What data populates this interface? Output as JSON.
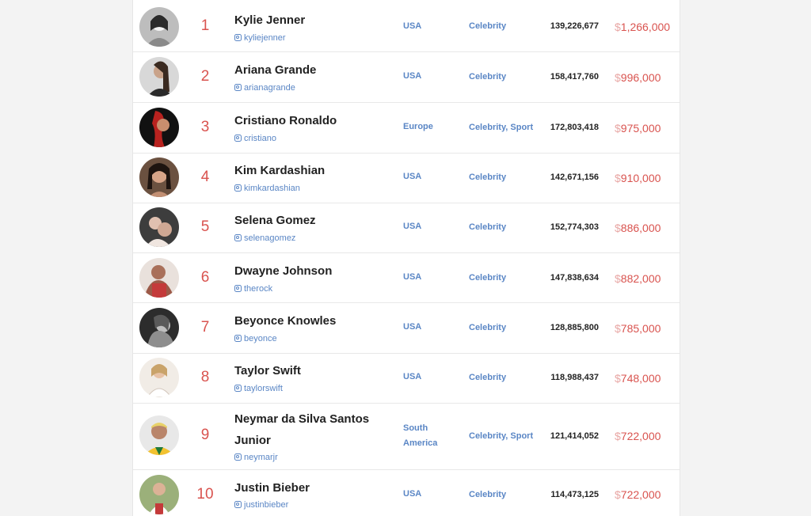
{
  "rows": [
    {
      "rank": "1",
      "name": "Kylie Jenner",
      "handle": "kyliejenner",
      "country": "USA",
      "category": [
        "Celebrity"
      ],
      "followers": "139,226,677",
      "currency": "$",
      "price": "1,266,000",
      "avatar": "avatar-portrait-icon"
    },
    {
      "rank": "2",
      "name": "Ariana Grande",
      "handle": "arianagrande",
      "country": "USA",
      "category": [
        "Celebrity"
      ],
      "followers": "158,417,760",
      "currency": "$",
      "price": "996,000",
      "avatar": "avatar-portrait-icon"
    },
    {
      "rank": "3",
      "name": "Cristiano Ronaldo",
      "handle": "cristiano",
      "country": "Europe",
      "category": [
        "Celebrity",
        "Sport"
      ],
      "followers": "172,803,418",
      "currency": "$",
      "price": "975,000",
      "avatar": "avatar-portrait-icon"
    },
    {
      "rank": "4",
      "name": "Kim Kardashian",
      "handle": "kimkardashian",
      "country": "USA",
      "category": [
        "Celebrity"
      ],
      "followers": "142,671,156",
      "currency": "$",
      "price": "910,000",
      "avatar": "avatar-portrait-icon"
    },
    {
      "rank": "5",
      "name": "Selena Gomez",
      "handle": "selenagomez",
      "country": "USA",
      "category": [
        "Celebrity"
      ],
      "followers": "152,774,303",
      "currency": "$",
      "price": "886,000",
      "avatar": "avatar-portrait-icon"
    },
    {
      "rank": "6",
      "name": "Dwayne Johnson",
      "handle": "therock",
      "country": "USA",
      "category": [
        "Celebrity"
      ],
      "followers": "147,838,634",
      "currency": "$",
      "price": "882,000",
      "avatar": "avatar-portrait-icon"
    },
    {
      "rank": "7",
      "name": "Beyonce Knowles",
      "handle": "beyonce",
      "country": "USA",
      "category": [
        "Celebrity"
      ],
      "followers": "128,885,800",
      "currency": "$",
      "price": "785,000",
      "avatar": "avatar-portrait-icon"
    },
    {
      "rank": "8",
      "name": "Taylor Swift",
      "handle": "taylorswift",
      "country": "USA",
      "category": [
        "Celebrity"
      ],
      "followers": "118,988,437",
      "currency": "$",
      "price": "748,000",
      "avatar": "avatar-portrait-icon"
    },
    {
      "rank": "9",
      "name": "Neymar da Silva Santos Junior",
      "handle": "neymarjr",
      "country": "South America",
      "category": [
        "Celebrity",
        "Sport"
      ],
      "followers": "121,414,052",
      "currency": "$",
      "price": "722,000",
      "avatar": "avatar-portrait-icon"
    },
    {
      "rank": "10",
      "name": "Justin Bieber",
      "handle": "justinbieber",
      "country": "USA",
      "category": [
        "Celebrity"
      ],
      "followers": "114,473,125",
      "currency": "$",
      "price": "722,000",
      "avatar": "avatar-portrait-icon"
    }
  ],
  "colors": {
    "accent_red": "#d9534f",
    "currency_faded": "#e8a6a4",
    "link_blue": "#5a86c5",
    "text_dark": "#222222",
    "row_border": "#e8e8e8"
  },
  "icons": {
    "handle_prefix": "instagram-icon"
  }
}
